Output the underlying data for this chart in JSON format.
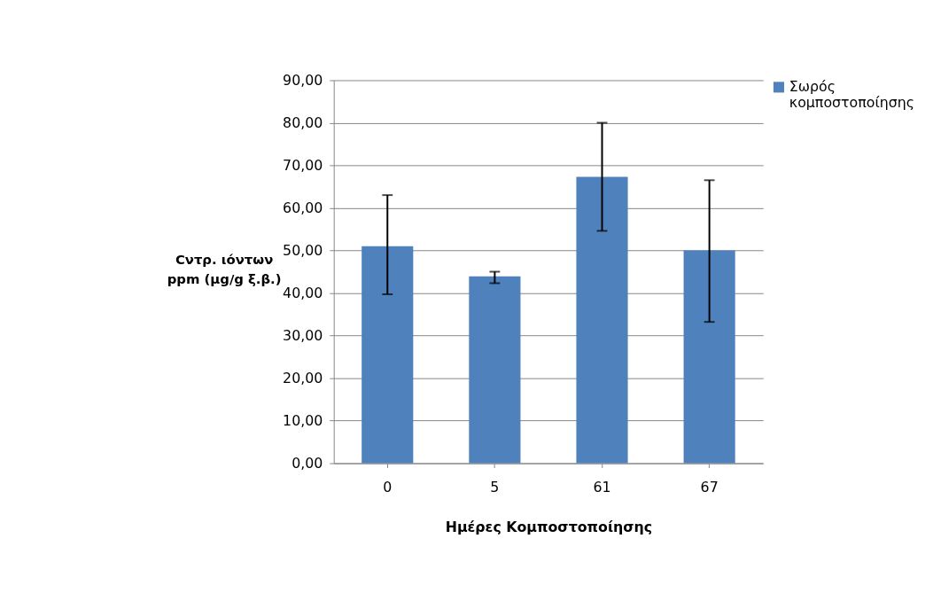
{
  "chart_data": {
    "type": "bar",
    "xlabel": "Ημέρες Κομποστοποίησης",
    "ylabel": "Cντρ. ιόντων ppm (μg/g ξ.β.)",
    "categories": [
      "0",
      "5",
      "61",
      "67"
    ],
    "series": [
      {
        "name": "Σωρός κομποστοποίησης",
        "color": "#4f81bd",
        "values": [
          51.0,
          43.9,
          67.3,
          50.0
        ],
        "errors": [
          [
            39.7,
            63.0
          ],
          [
            42.3,
            45.0
          ],
          [
            54.6,
            80.0
          ],
          [
            33.2,
            66.5
          ]
        ]
      }
    ],
    "ylim": [
      0,
      90
    ],
    "yticks": [
      {
        "value": 0,
        "label": "0,00"
      },
      {
        "value": 10,
        "label": "10,00"
      },
      {
        "value": 20,
        "label": "20,00"
      },
      {
        "value": 30,
        "label": "30,00"
      },
      {
        "value": 40,
        "label": "40,00"
      },
      {
        "value": 50,
        "label": "50,00"
      },
      {
        "value": 60,
        "label": "60,00"
      },
      {
        "value": 70,
        "label": "70,00"
      },
      {
        "value": 80,
        "label": "80,00"
      },
      {
        "value": 90,
        "label": "90,00"
      }
    ],
    "grid": "y",
    "legend": "right"
  }
}
